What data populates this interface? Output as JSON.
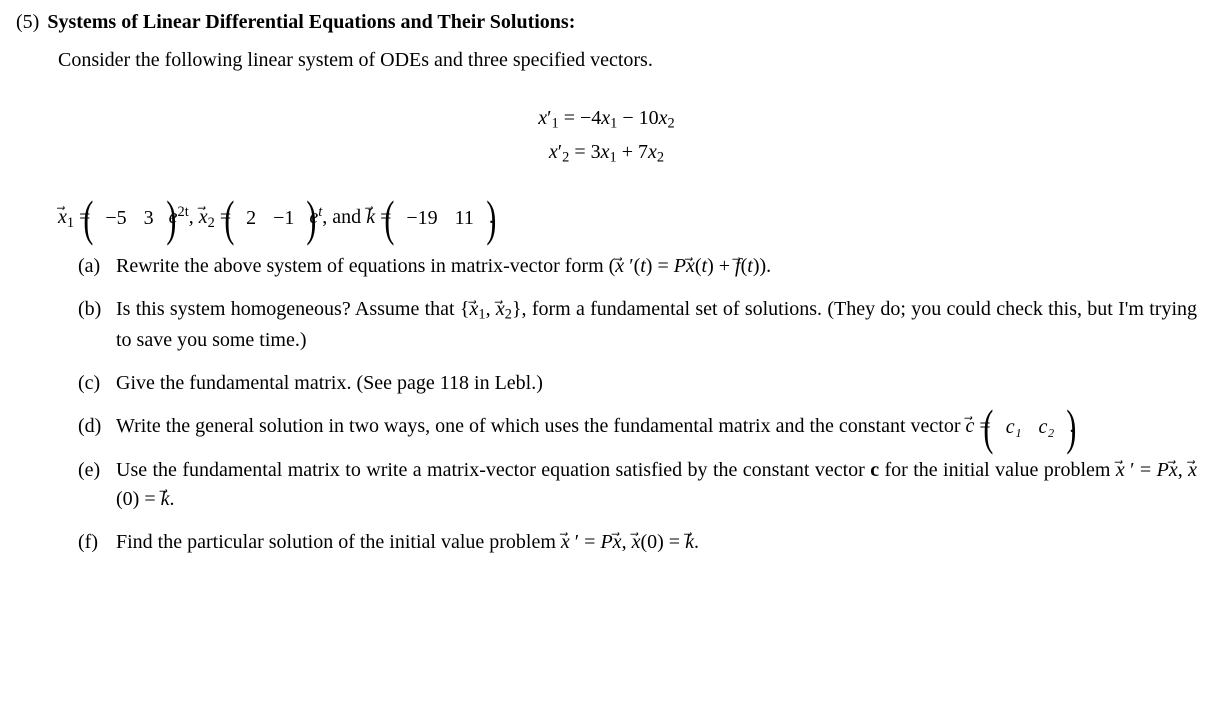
{
  "problem": {
    "number": "(5)",
    "title": "Systems of Linear Differential Equations and Their Solutions:",
    "intro": "Consider the following linear system of ODEs and three specified vectors."
  },
  "equations": {
    "line1_lhs": "x",
    "line1_sub": "1",
    "line1_rhs": " = −4x₁ − 10x₂",
    "line2_lhs": "x",
    "line2_sub": "2",
    "line2_rhs": " = 3x₁ + 7x₂",
    "raw1": "x′₁ = −4x₁ − 10x₂",
    "raw2": "x′₂ = 3x₁ + 7x₂"
  },
  "vectors": {
    "x1_top": "−5",
    "x1_bot": "3",
    "x1_exp": "2t",
    "x2_top": "2",
    "x2_bot": "−1",
    "x2_exp": "t",
    "k_top": "−19",
    "k_bot": "11",
    "eq": " = ",
    "comma": ", ",
    "and": ", and ",
    "period": " .",
    "e": "e"
  },
  "parts": {
    "a": {
      "label": "(a)",
      "text_before": "Rewrite the above system of equations in matrix-vector form (",
      "text_after": ")."
    },
    "b": {
      "label": "(b)",
      "text": "Is this system homogeneous?  Assume that {",
      "text2": "}, form a fundamental set of solutions.  (They do; you could check this, but I'm trying to save you some time.)"
    },
    "c": {
      "label": "(c)",
      "text": "Give the fundamental matrix.  (See page 118 in Lebl.)"
    },
    "d": {
      "label": "(d)",
      "text_before": "Write the general solution in two ways, one of which uses the fundamental matrix and the constant vector ",
      "c_top": "c₁",
      "c_bot": "c₂",
      "period": " ."
    },
    "e": {
      "label": "(e)",
      "text_before": "Use the fundamental matrix to write a matrix-vector equation satisfied by the constant vector ",
      "bold_c": "c",
      "text_mid": " for the initial value problem ",
      "period": "."
    },
    "f": {
      "label": "(f)",
      "text_before": "Find the particular solution of the initial value problem ",
      "period": "."
    }
  },
  "math_frag": {
    "xprime_t": "x⃗ ′(t) = Px⃗(t) + f⃗(t)",
    "x1x2": "x⃗₁, x⃗₂",
    "c_eq": "c⃗ = ",
    "ivp": "x⃗ ′ = Px⃗,  x⃗(0) = k⃗",
    "x": "x",
    "k": "k",
    "f": "f",
    "c": "c",
    "P": "P",
    "prime": "′",
    "t_paren": "(t)",
    "plus": " + ",
    "eq": " = ",
    "zero_paren": "(0)",
    "comma_sp": ",  "
  }
}
